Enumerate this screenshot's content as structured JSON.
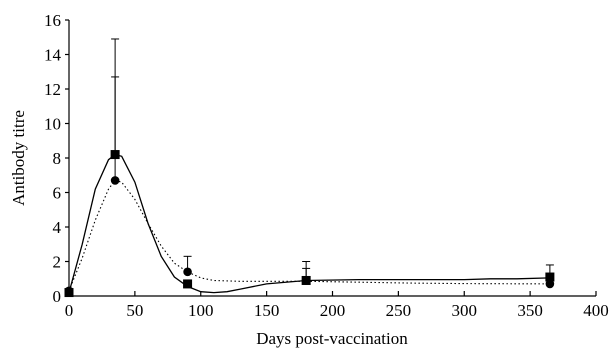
{
  "chart_data": {
    "type": "line",
    "title": "",
    "xlabel": "Days post-vaccination",
    "ylabel": "Antibody titre",
    "xlim": [
      0,
      400
    ],
    "ylim": [
      0,
      16
    ],
    "x_ticks": [
      0,
      50,
      100,
      150,
      200,
      250,
      300,
      350,
      400
    ],
    "y_ticks": [
      0,
      2,
      4,
      6,
      8,
      10,
      12,
      14,
      16
    ],
    "grid": false,
    "legend": "none",
    "series": [
      {
        "marker": "square",
        "line_style": "solid",
        "x": [
          0,
          35,
          90,
          180,
          365
        ],
        "y": [
          0.2,
          8.2,
          0.7,
          0.9,
          1.1
        ],
        "error_upper": [
          0.2,
          14.9,
          0.7,
          2.0,
          1.8
        ],
        "curve_x": [
          0,
          10,
          20,
          30,
          35,
          40,
          50,
          60,
          70,
          80,
          90,
          100,
          110,
          120,
          130,
          150,
          180,
          220,
          260,
          300,
          320,
          340,
          365
        ],
        "curve_y": [
          0.2,
          3.0,
          6.2,
          7.9,
          8.2,
          8.1,
          6.6,
          4.2,
          2.3,
          1.1,
          0.55,
          0.25,
          0.2,
          0.25,
          0.4,
          0.7,
          0.9,
          0.95,
          0.95,
          0.95,
          1.0,
          1.0,
          1.05
        ]
      },
      {
        "marker": "circle",
        "line_style": "dotted",
        "x": [
          0,
          35,
          90,
          180,
          365
        ],
        "y": [
          0.3,
          6.7,
          1.4,
          0.9,
          0.7
        ],
        "error_upper": [
          0.3,
          12.7,
          2.3,
          1.6,
          0.7
        ],
        "curve_x": [
          0,
          10,
          20,
          30,
          35,
          40,
          50,
          60,
          70,
          80,
          90,
          100,
          110,
          130,
          150,
          180,
          220,
          260,
          300,
          365
        ],
        "curve_y": [
          0.3,
          2.2,
          4.4,
          6.2,
          6.7,
          6.6,
          5.6,
          4.2,
          2.9,
          1.9,
          1.4,
          1.05,
          0.9,
          0.85,
          0.85,
          0.85,
          0.8,
          0.75,
          0.72,
          0.7
        ]
      }
    ],
    "colors": {
      "axis": "#000000",
      "series": "#000000"
    }
  }
}
